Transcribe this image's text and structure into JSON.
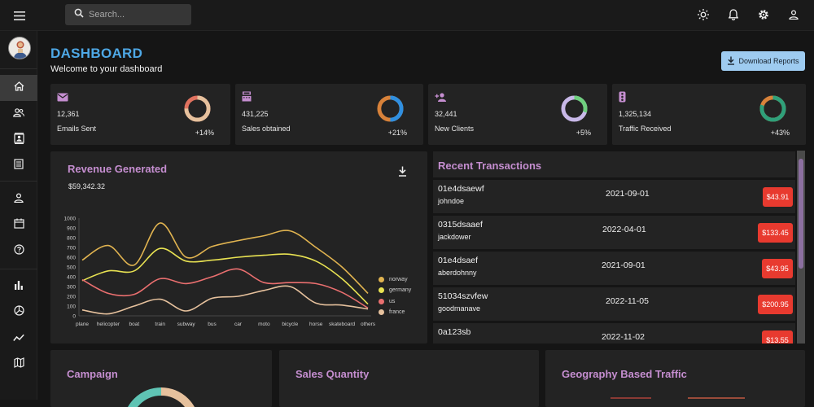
{
  "search": {
    "placeholder": "Search..."
  },
  "header": {
    "title": "DASHBOARD",
    "subtitle": "Welcome to your dashboard",
    "download_label": "Download Reports"
  },
  "colors": {
    "accent_blue": "#4ea8e6",
    "accent_purple": "#c58ed0",
    "danger": "#e83a2f"
  },
  "stats": [
    {
      "icon": "email-icon",
      "value": "12,361",
      "label": "Emails Sent",
      "change": "+14%",
      "progress": 0.75
    },
    {
      "icon": "point-of-sale-icon",
      "value": "431,225",
      "label": "Sales obtained",
      "change": "+21%",
      "progress": 0.5
    },
    {
      "icon": "person-add-icon",
      "value": "32,441",
      "label": "New Clients",
      "change": "+5%",
      "progress": 0.3
    },
    {
      "icon": "traffic-icon",
      "value": "1,325,134",
      "label": "Traffic Received",
      "change": "+43%",
      "progress": 0.8
    }
  ],
  "revenue": {
    "title": "Revenue Generated",
    "total": "$59,342.32"
  },
  "chart_data": {
    "type": "line",
    "title": "",
    "categories": [
      "plane",
      "helicopter",
      "boat",
      "train",
      "subway",
      "bus",
      "car",
      "moto",
      "bicycle",
      "horse",
      "skateboard",
      "others"
    ],
    "ylim": [
      0,
      1000
    ],
    "yticks": [
      "0",
      "100",
      "200",
      "300",
      "400",
      "500",
      "600",
      "700",
      "800",
      "900",
      "1000"
    ],
    "legend_position": "right",
    "series": [
      {
        "name": "norway",
        "color": "#e0b350",
        "values": [
          570,
          720,
          520,
          950,
          600,
          710,
          770,
          820,
          870,
          700,
          500,
          230
        ]
      },
      {
        "name": "germany",
        "color": "#e8e252",
        "values": [
          360,
          460,
          460,
          690,
          560,
          570,
          600,
          620,
          630,
          560,
          380,
          120
        ]
      },
      {
        "name": "us",
        "color": "#ea6f6f",
        "values": [
          370,
          230,
          220,
          380,
          330,
          400,
          480,
          340,
          340,
          330,
          240,
          80
        ]
      },
      {
        "name": "france",
        "color": "#e6c19d",
        "values": [
          60,
          20,
          100,
          170,
          50,
          180,
          200,
          260,
          300,
          130,
          110,
          70
        ]
      }
    ]
  },
  "transactions": {
    "title": "Recent Transactions",
    "rows": [
      {
        "id": "01e4dsaewf",
        "user": "johndoe",
        "date": "2021-09-01",
        "amount": "$43.91"
      },
      {
        "id": "0315dsaaef",
        "user": "jackdower",
        "date": "2022-04-01",
        "amount": "$133.45"
      },
      {
        "id": "01e4dsaef",
        "user": "aberdohnny",
        "date": "2021-09-01",
        "amount": "$43.95"
      },
      {
        "id": "51034szvfew",
        "user": "goodmanave",
        "date": "2022-11-05",
        "amount": "$200.95"
      },
      {
        "id": "0a123sb",
        "user": "",
        "date": "2022-11-02",
        "amount": "$13.55"
      }
    ]
  },
  "bottom": {
    "campaign_title": "Campaign",
    "sales_title": "Sales Quantity",
    "geo_title": "Geography Based Traffic"
  }
}
